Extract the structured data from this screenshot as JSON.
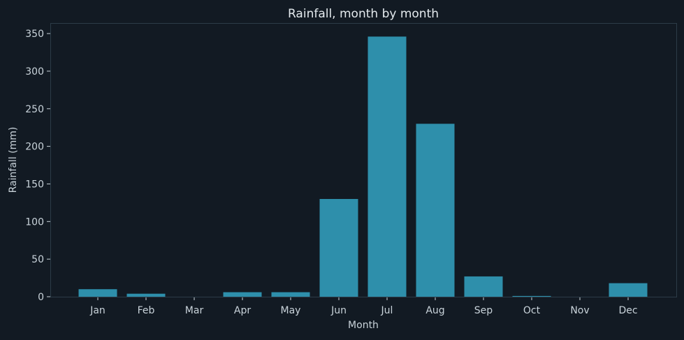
{
  "chart_data": {
    "type": "bar",
    "title": "Rainfall, month by month",
    "xlabel": "Month",
    "ylabel": "Rainfall (mm)",
    "categories": [
      "Jan",
      "Feb",
      "Mar",
      "Apr",
      "May",
      "Jun",
      "Jul",
      "Aug",
      "Sep",
      "Oct",
      "Nov",
      "Dec"
    ],
    "values": [
      10,
      4,
      0,
      6,
      6,
      130,
      346,
      230,
      27,
      1,
      0,
      18
    ],
    "ylim": [
      0,
      364
    ],
    "yticks": [
      0,
      50,
      100,
      150,
      200,
      250,
      300,
      350
    ],
    "grid": false,
    "legend": "none",
    "colors": {
      "background": "#121a23",
      "bar": "#2e8fab",
      "axis": "#2c3c48",
      "text": "#c9d3da",
      "title": "#e4eaee"
    }
  }
}
